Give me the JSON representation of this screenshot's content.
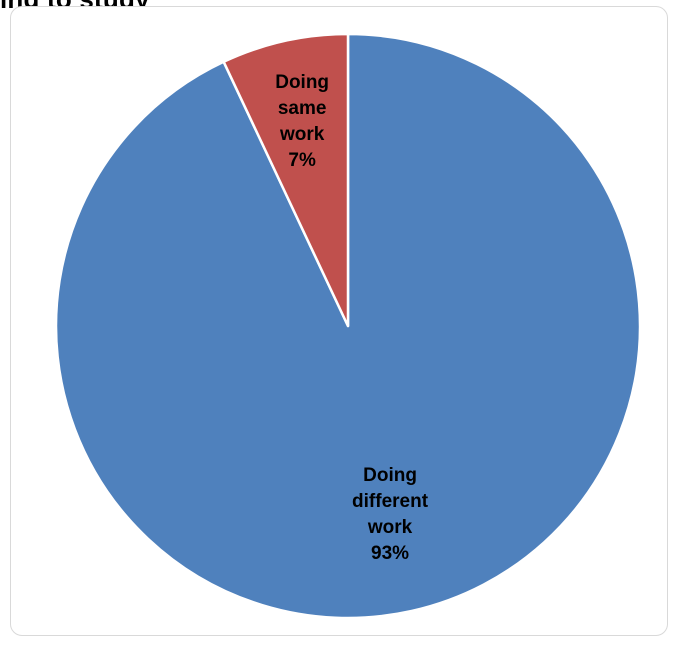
{
  "title_fragment": "ing to study",
  "chart_data": {
    "type": "pie",
    "start_angle_deg": 0,
    "direction": "clockwise",
    "slices": [
      {
        "name": "Doing different work",
        "value": 93,
        "label_lines": [
          "Doing",
          "different",
          "work",
          "93%"
        ],
        "color": "#4f81bd"
      },
      {
        "name": "Doing same work",
        "value": 7,
        "label_lines": [
          "Doing",
          "same",
          "work",
          "7%"
        ],
        "color": "#c0504d"
      }
    ],
    "legend": "none",
    "slice_border_color": "#ffffff"
  }
}
